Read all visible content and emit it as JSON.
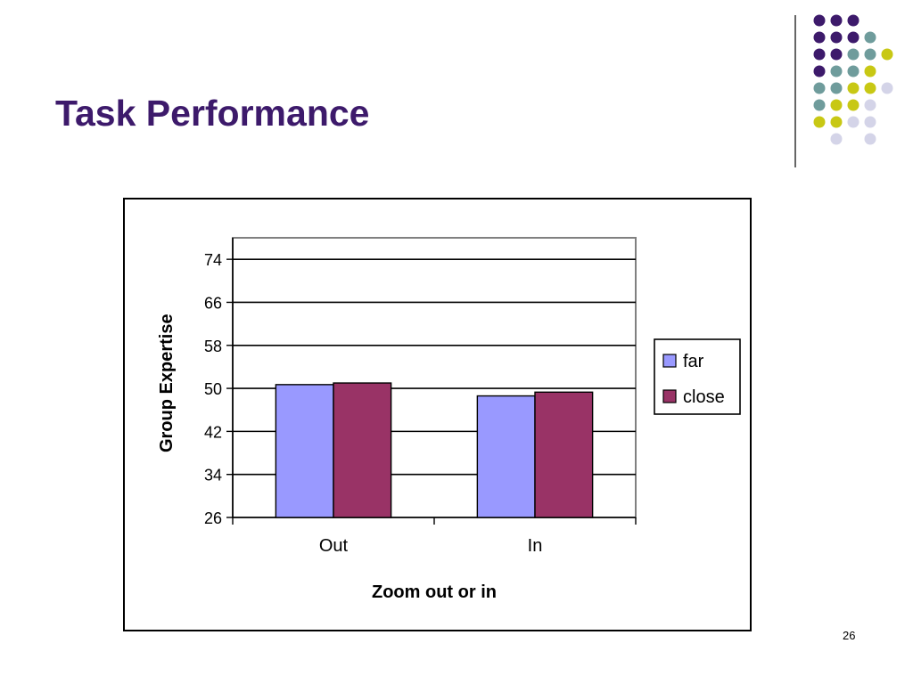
{
  "slide": {
    "title": "Task Performance",
    "page_number": "26"
  },
  "decoration": {
    "dot_colors": {
      "purple": "#3d1a6b",
      "teal": "#6f9c9c",
      "yellow": "#c8c814",
      "lavender": "#d4d4e8"
    }
  },
  "chart_data": {
    "type": "bar",
    "categories": [
      "Out",
      "In"
    ],
    "series": [
      {
        "name": "far",
        "values": [
          50.7,
          48.6
        ],
        "color": "#9999ff"
      },
      {
        "name": "close",
        "values": [
          51.0,
          49.3
        ],
        "color": "#993366"
      }
    ],
    "xlabel": "Zoom out or in",
    "ylabel": "Group Expertise",
    "ylim": [
      26,
      78
    ],
    "yticks": [
      26,
      34,
      42,
      50,
      58,
      66,
      74
    ],
    "grid": true,
    "legend": "right"
  }
}
